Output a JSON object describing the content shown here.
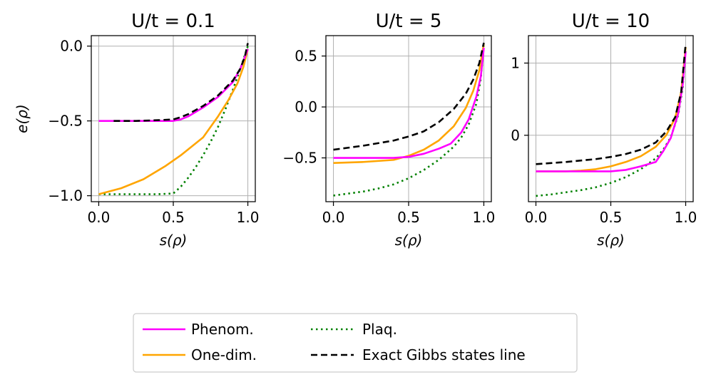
{
  "chart_data": [
    {
      "type": "line",
      "title": "U/t = 0.1",
      "xlabel": "s(ρ)",
      "ylabel": "e(ρ)",
      "xlim": [
        -0.05,
        1.05
      ],
      "ylim": [
        -1.04,
        0.07
      ],
      "xticks": [
        0.0,
        0.5,
        1.0
      ],
      "xtick_labels": [
        "0.0",
        "0.5",
        "1.0"
      ],
      "yticks": [
        -1.0,
        -0.5,
        0.0
      ],
      "ytick_labels": [
        "−1.0",
        "−0.5",
        "0.0"
      ],
      "grid": true,
      "series": [
        {
          "key": "plaq",
          "x": [
            0.0,
            0.1,
            0.2,
            0.3,
            0.4,
            0.5,
            0.55,
            0.6,
            0.65,
            0.7,
            0.75,
            0.8,
            0.85,
            0.9,
            0.95,
            1.0
          ],
          "y": [
            -0.99,
            -0.99,
            -0.99,
            -0.99,
            -0.99,
            -0.985,
            -0.94,
            -0.88,
            -0.81,
            -0.73,
            -0.64,
            -0.54,
            -0.42,
            -0.29,
            -0.15,
            0.0
          ]
        },
        {
          "key": "one_dim",
          "x": [
            0.0,
            0.15,
            0.3,
            0.45,
            0.55,
            0.7,
            0.8,
            0.87,
            0.93,
            0.97,
            1.0
          ],
          "y": [
            -0.99,
            -0.95,
            -0.89,
            -0.8,
            -0.73,
            -0.61,
            -0.47,
            -0.36,
            -0.25,
            -0.14,
            -0.02
          ]
        },
        {
          "key": "phenom",
          "x": [
            0.0,
            0.2,
            0.4,
            0.5,
            0.55,
            0.6,
            0.7,
            0.8,
            0.9,
            0.95,
            1.0
          ],
          "y": [
            -0.5,
            -0.5,
            -0.5,
            -0.5,
            -0.49,
            -0.47,
            -0.41,
            -0.34,
            -0.24,
            -0.15,
            -0.02
          ]
        },
        {
          "key": "exact",
          "x": [
            0.1,
            0.25,
            0.4,
            0.5,
            0.55,
            0.6,
            0.7,
            0.8,
            0.9,
            0.95,
            0.98,
            1.0
          ],
          "y": [
            -0.5,
            -0.5,
            -0.495,
            -0.49,
            -0.475,
            -0.455,
            -0.4,
            -0.33,
            -0.23,
            -0.15,
            -0.07,
            0.02
          ]
        }
      ]
    },
    {
      "type": "line",
      "title": "U/t = 5",
      "xlabel": "s(ρ)",
      "ylabel": "",
      "xlim": [
        -0.05,
        1.05
      ],
      "ylim": [
        -0.93,
        0.7
      ],
      "xticks": [
        0.0,
        0.5,
        1.0
      ],
      "xtick_labels": [
        "0.0",
        "0.5",
        "1.0"
      ],
      "yticks": [
        -0.5,
        0.0,
        0.5
      ],
      "ytick_labels": [
        "−0.5",
        "0.0",
        "0.5"
      ],
      "grid": true,
      "series": [
        {
          "key": "plaq",
          "x": [
            0.0,
            0.1,
            0.2,
            0.3,
            0.4,
            0.5,
            0.6,
            0.7,
            0.8,
            0.85,
            0.9,
            0.95,
            0.98,
            1.0
          ],
          "y": [
            -0.87,
            -0.85,
            -0.83,
            -0.8,
            -0.76,
            -0.7,
            -0.62,
            -0.52,
            -0.39,
            -0.3,
            -0.17,
            0.03,
            0.28,
            0.6
          ]
        },
        {
          "key": "one_dim",
          "x": [
            0.0,
            0.2,
            0.4,
            0.5,
            0.6,
            0.7,
            0.8,
            0.88,
            0.93,
            0.97,
            1.0
          ],
          "y": [
            -0.55,
            -0.54,
            -0.52,
            -0.48,
            -0.42,
            -0.33,
            -0.19,
            -0.01,
            0.16,
            0.36,
            0.62
          ]
        },
        {
          "key": "phenom",
          "x": [
            0.0,
            0.2,
            0.4,
            0.5,
            0.6,
            0.7,
            0.78,
            0.85,
            0.9,
            0.95,
            0.98,
            1.0
          ],
          "y": [
            -0.5,
            -0.5,
            -0.5,
            -0.49,
            -0.46,
            -0.41,
            -0.36,
            -0.25,
            -0.12,
            0.1,
            0.3,
            0.58
          ]
        },
        {
          "key": "exact",
          "x": [
            0.0,
            0.2,
            0.4,
            0.5,
            0.6,
            0.7,
            0.8,
            0.88,
            0.93,
            0.97,
            1.0
          ],
          "y": [
            -0.42,
            -0.38,
            -0.33,
            -0.29,
            -0.24,
            -0.15,
            -0.02,
            0.13,
            0.27,
            0.43,
            0.63
          ]
        }
      ]
    },
    {
      "type": "line",
      "title": "U/t = 10",
      "xlabel": "s(ρ)",
      "ylabel": "",
      "xlim": [
        -0.05,
        1.05
      ],
      "ylim": [
        -0.92,
        1.38
      ],
      "xticks": [
        0.0,
        0.5,
        1.0
      ],
      "xtick_labels": [
        "0.0",
        "0.5",
        "1.0"
      ],
      "yticks": [
        0,
        1
      ],
      "ytick_labels": [
        "0",
        "1"
      ],
      "grid": true,
      "series": [
        {
          "key": "plaq",
          "x": [
            0.0,
            0.1,
            0.2,
            0.3,
            0.4,
            0.5,
            0.6,
            0.7,
            0.8,
            0.85,
            0.9,
            0.95,
            0.98,
            1.0
          ],
          "y": [
            -0.84,
            -0.82,
            -0.79,
            -0.76,
            -0.72,
            -0.66,
            -0.58,
            -0.47,
            -0.32,
            -0.2,
            -0.03,
            0.28,
            0.66,
            1.18
          ]
        },
        {
          "key": "one_dim",
          "x": [
            0.0,
            0.2,
            0.3,
            0.4,
            0.5,
            0.6,
            0.7,
            0.8,
            0.87,
            0.93,
            0.97,
            1.0
          ],
          "y": [
            -0.5,
            -0.5,
            -0.49,
            -0.47,
            -0.43,
            -0.37,
            -0.29,
            -0.16,
            0.0,
            0.24,
            0.6,
            1.22
          ]
        },
        {
          "key": "phenom",
          "x": [
            0.0,
            0.2,
            0.4,
            0.5,
            0.6,
            0.7,
            0.8,
            0.85,
            0.9,
            0.95,
            0.98,
            1.0
          ],
          "y": [
            -0.5,
            -0.5,
            -0.5,
            -0.5,
            -0.48,
            -0.43,
            -0.37,
            -0.22,
            -0.04,
            0.3,
            0.7,
            1.16
          ]
        },
        {
          "key": "exact",
          "x": [
            0.0,
            0.2,
            0.4,
            0.5,
            0.6,
            0.7,
            0.8,
            0.87,
            0.93,
            0.97,
            1.0
          ],
          "y": [
            -0.4,
            -0.37,
            -0.33,
            -0.3,
            -0.26,
            -0.2,
            -0.1,
            0.05,
            0.25,
            0.6,
            1.27
          ]
        }
      ]
    }
  ],
  "legend": {
    "placement": "bottom-center",
    "entries": [
      {
        "key": "phenom",
        "label": "Phenom.",
        "color": "#ff00ff",
        "dash": "solid"
      },
      {
        "key": "plaq",
        "label": "Plaq.",
        "color": "#008000",
        "dash": "dotted"
      },
      {
        "key": "one_dim",
        "label": "One-dim.",
        "color": "#ffa500",
        "dash": "solid"
      },
      {
        "key": "exact",
        "label": "Exact Gibbs states line",
        "color": "#000000",
        "dash": "dashed"
      }
    ]
  }
}
